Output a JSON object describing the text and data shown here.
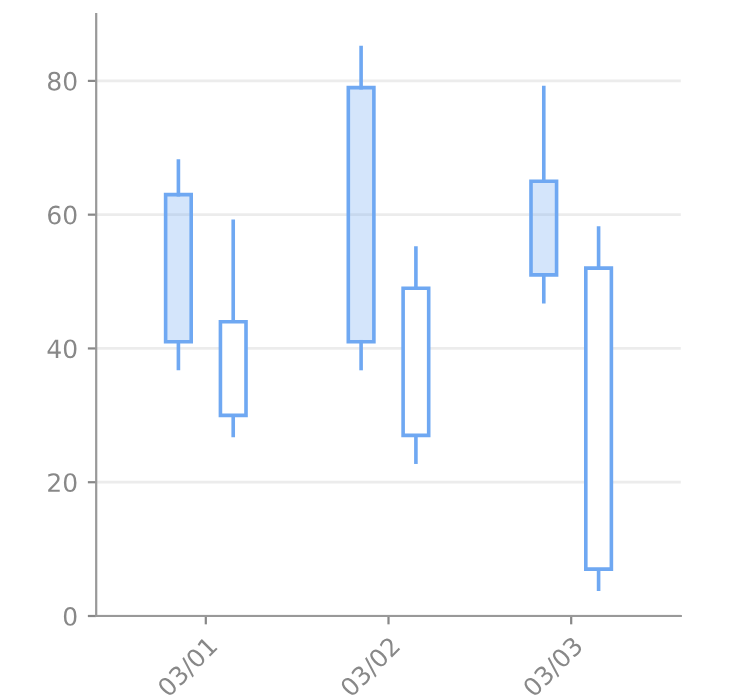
{
  "chart_data": {
    "type": "candlestick",
    "categories": [
      "03/01",
      "03/02",
      "03/03"
    ],
    "series": [
      {
        "color": "#6fa8f2",
        "ohlc": [
          [
            41,
            68,
            37,
            63
          ],
          [
            41,
            85,
            37,
            79
          ],
          [
            51,
            79,
            47,
            65
          ]
        ]
      },
      {
        "color": "#6fa8f2",
        "ohlc": [
          [
            44,
            59,
            27,
            30
          ],
          [
            49,
            55,
            23,
            27
          ],
          [
            52,
            58,
            4,
            7
          ]
        ]
      }
    ],
    "ylim": [
      0,
      90
    ],
    "yticks": [
      0,
      20,
      40,
      60,
      80
    ],
    "grid": "y"
  }
}
